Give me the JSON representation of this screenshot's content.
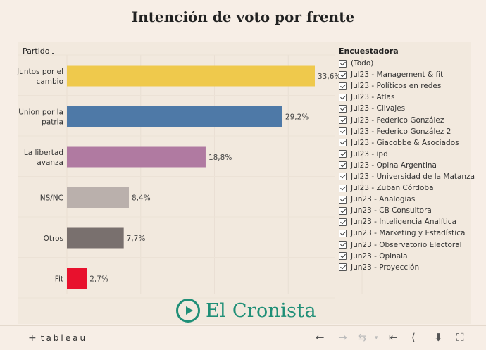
{
  "title": "Intención de voto por frente",
  "partido_header": "Partido",
  "legend": {
    "title": "Encuestadora",
    "items": [
      "(Todo)",
      "Jul23 - Management & fit",
      "Jul23 - Políticos en redes",
      "Jul23 - Atlas",
      "Jul23 - Clivajes",
      "Jul23 - Federico González",
      "Jul23 - Federico González 2",
      "Jul23 - Giacobbe & Asociados",
      "Jul23 - ipd",
      "Jul23 - Opina Argentina",
      "Jul23 - Universidad de la Matanza",
      "Jul23 - Zuban Córdoba",
      "Jun23 - Analogias",
      "Jun23 - CB Consultora",
      "Jun23 - Inteligencia Analítica",
      "Jun23 - Marketing y Estadística",
      "Jun23 - Observatorio Electoral",
      "Jun23 - Opinaia",
      "Jun23 - Proyección"
    ]
  },
  "brand": "El Cronista",
  "toolbar": {
    "tableau": "tableau",
    "plus": "+"
  },
  "chart_data": {
    "type": "bar",
    "orientation": "horizontal",
    "title": "Intención de voto por frente",
    "ylabel": "Partido",
    "categories": [
      [
        "Juntos por el",
        "cambio"
      ],
      [
        "Union por la",
        "patria"
      ],
      [
        "La libertad",
        "avanza"
      ],
      [
        "NS/NC"
      ],
      [
        "Otros"
      ],
      [
        "Fit"
      ]
    ],
    "values": [
      33.6,
      29.2,
      18.8,
      8.4,
      7.7,
      2.7
    ],
    "value_labels": [
      "33,6%",
      "29,2%",
      "18,8%",
      "8,4%",
      "7,7%",
      "2,7%"
    ],
    "colors": [
      "#efc94c",
      "#4e79a7",
      "#b07aa1",
      "#bab0ac",
      "#79706e",
      "#e8112d"
    ],
    "xlim": [
      0,
      40
    ],
    "grid": true
  }
}
